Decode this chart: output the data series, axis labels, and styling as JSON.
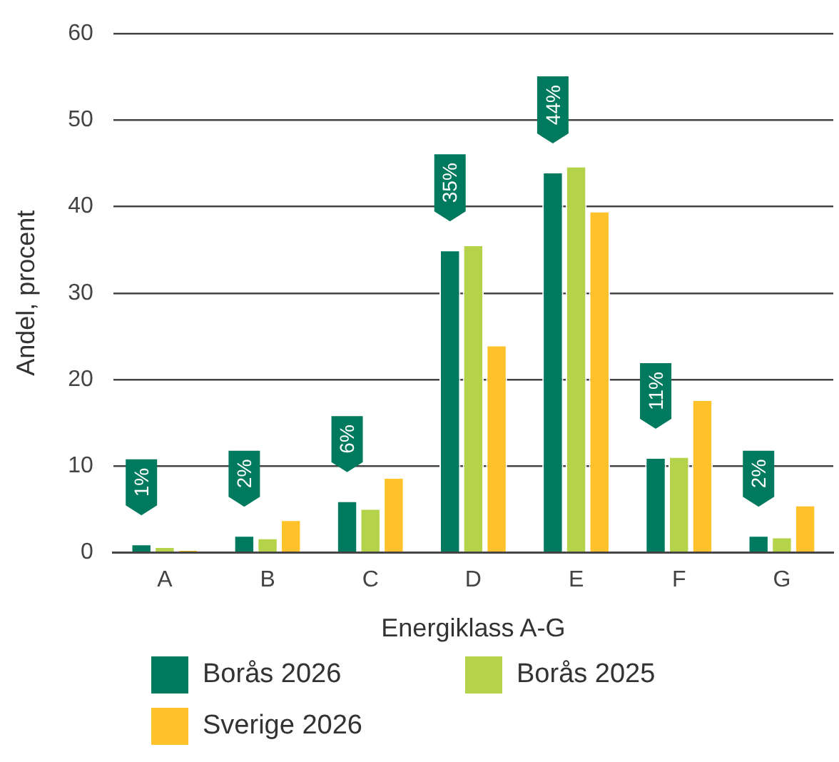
{
  "chart_data": {
    "type": "bar",
    "xlabel": "Energiklass A-G",
    "ylabel": "Andel, procent",
    "categories": [
      "A",
      "B",
      "C",
      "D",
      "E",
      "F",
      "G"
    ],
    "series": [
      {
        "name": "Borås 2026",
        "color": "#007a5e",
        "values": [
          1,
          2,
          6,
          35,
          44,
          11,
          2
        ],
        "value_labels": [
          "1%",
          "2%",
          "6%",
          "35%",
          "44%",
          "11%",
          "2%"
        ]
      },
      {
        "name": "Borås 2025",
        "color": "#b5d34a",
        "values": [
          0.7,
          1.7,
          5.1,
          35.6,
          44.7,
          11.1,
          1.8
        ]
      },
      {
        "name": "Sverige 2026",
        "color": "#ffc22a",
        "values": [
          0.3,
          3.8,
          8.7,
          24,
          39.5,
          17.7,
          5.5
        ]
      }
    ],
    "ylim": [
      0,
      60
    ],
    "yticks": [
      0,
      10,
      20,
      30,
      40,
      50,
      60
    ],
    "grid": "y",
    "legend": "bottom left"
  }
}
